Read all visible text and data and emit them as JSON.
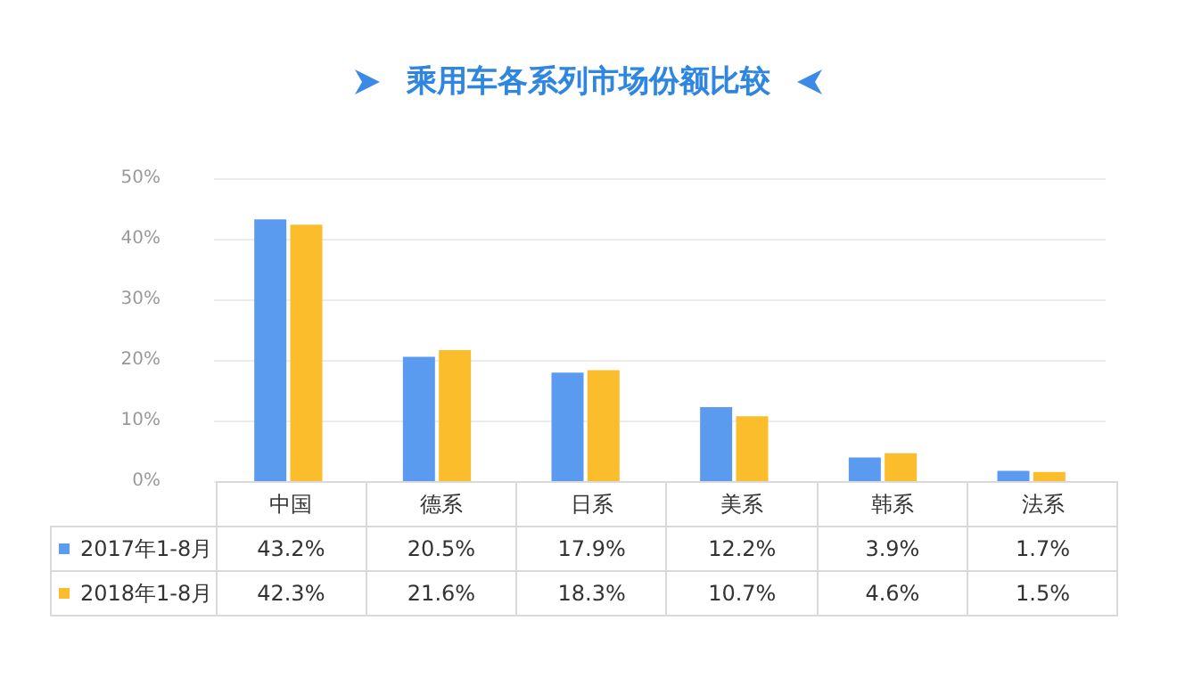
{
  "chart_data": {
    "type": "bar",
    "title": "乘用车各系列市场份额比较",
    "categories": [
      "中国",
      "德系",
      "日系",
      "美系",
      "韩系",
      "法系"
    ],
    "series": [
      {
        "name": "2017年1-8月",
        "color": "#5b9bef",
        "values": [
          43.2,
          20.5,
          17.9,
          12.2,
          3.9,
          1.7
        ],
        "value_labels": [
          "43.2%",
          "20.5%",
          "17.9%",
          "12.2%",
          "3.9%",
          "1.7%"
        ]
      },
      {
        "name": "2018年1-8月",
        "color": "#fbbd2c",
        "values": [
          42.3,
          21.6,
          18.3,
          10.7,
          4.6,
          1.5
        ],
        "value_labels": [
          "42.3%",
          "21.6%",
          "18.3%",
          "10.7%",
          "4.6%",
          "1.5%"
        ]
      }
    ],
    "ylim": [
      0,
      50
    ],
    "yticks": [
      {
        "value": 0,
        "label": "0%"
      },
      {
        "value": 10,
        "label": "10%"
      },
      {
        "value": 20,
        "label": "20%"
      },
      {
        "value": 30,
        "label": "30%"
      },
      {
        "value": 40,
        "label": "40%"
      },
      {
        "value": 50,
        "label": "50%"
      }
    ],
    "grid": "y",
    "legend": "bottom left"
  }
}
